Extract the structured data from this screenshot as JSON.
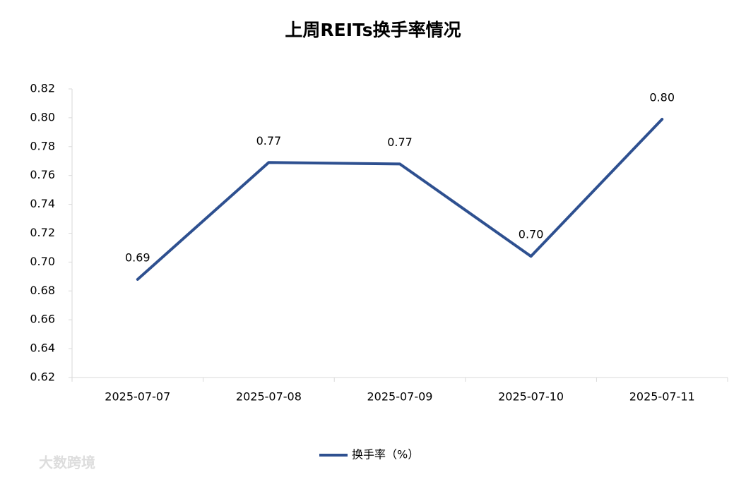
{
  "chart_data": {
    "type": "line",
    "title": "上周REITs换手率情况",
    "categories": [
      "2025-07-07",
      "2025-07-08",
      "2025-07-09",
      "2025-07-10",
      "2025-07-11"
    ],
    "series": [
      {
        "name": "换手率（%）",
        "color": "#2e5090",
        "values": [
          0.688,
          0.769,
          0.768,
          0.704,
          0.799
        ],
        "value_labels": [
          "0.69",
          "0.77",
          "0.77",
          "0.70",
          "0.80"
        ]
      }
    ],
    "ylim": [
      0.62,
      0.82
    ],
    "yticks": [
      0.62,
      0.64,
      0.66,
      0.68,
      {
        "value": 0.7,
        "label": "0.70"
      },
      0.72,
      0.74,
      0.76,
      0.78,
      {
        "value": 0.8,
        "label": "0.80"
      },
      0.82
    ],
    "grid": false,
    "legend": "bottom",
    "watermark": "大数跨境"
  }
}
